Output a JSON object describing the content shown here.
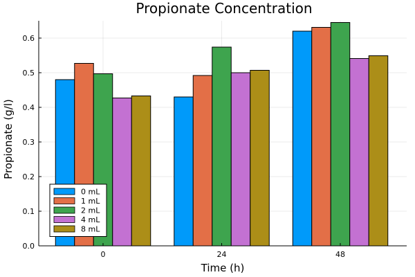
{
  "chart_data": {
    "type": "bar",
    "title": "Propionate Concentration",
    "xlabel": "Time (h)",
    "ylabel": "Propionate (g/l)",
    "categories": [
      "0",
      "24",
      "48"
    ],
    "ylim": [
      0,
      0.65
    ],
    "yticks": [
      0.0,
      0.1,
      0.2,
      0.3,
      0.4,
      0.5,
      0.6
    ],
    "ytick_labels": [
      "0.0",
      "0.1",
      "0.2",
      "0.3",
      "0.4",
      "0.5",
      "0.6"
    ],
    "grid": true,
    "legend_position": "bottom-left",
    "series": [
      {
        "name": "0 mL",
        "color": "#009AFA",
        "values": [
          0.48,
          0.43,
          0.62
        ]
      },
      {
        "name": "1 mL",
        "color": "#E36F47",
        "values": [
          0.527,
          0.492,
          0.631
        ]
      },
      {
        "name": "2 mL",
        "color": "#3EA44E",
        "values": [
          0.497,
          0.574,
          0.645
        ]
      },
      {
        "name": "4 mL",
        "color": "#C371D2",
        "values": [
          0.427,
          0.5,
          0.541
        ]
      },
      {
        "name": "8 mL",
        "color": "#AC8E18",
        "values": [
          0.433,
          0.507,
          0.549
        ]
      }
    ]
  }
}
